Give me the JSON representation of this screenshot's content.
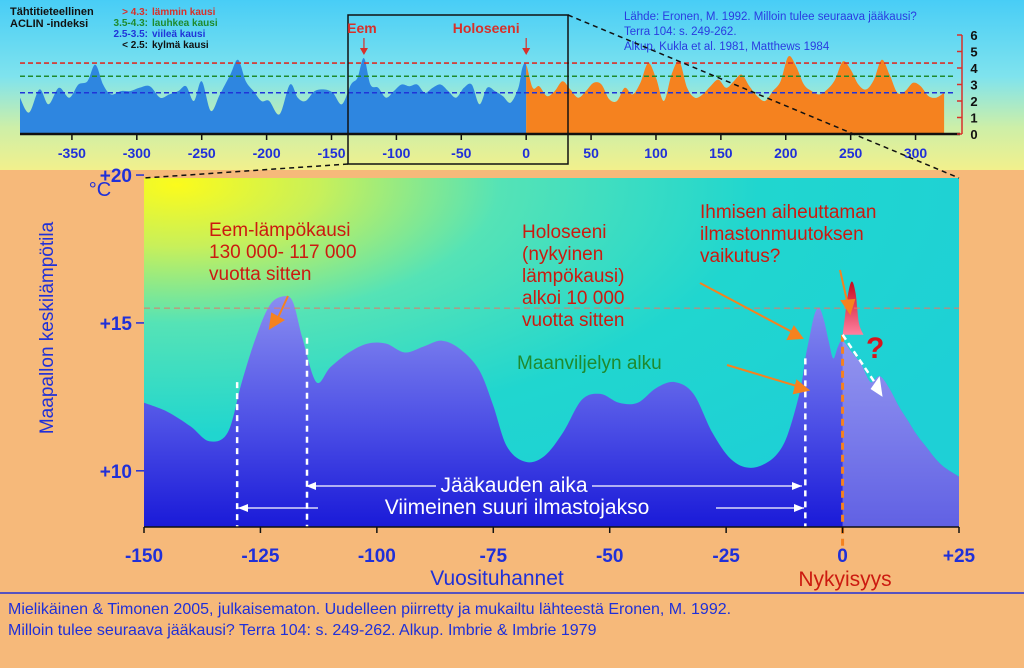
{
  "top_panel": {
    "legend": {
      "title": "Tähtitieteellinen",
      "subtitle": "ACLIN -indeksi",
      "items": [
        {
          "range": "> 4.3:",
          "label": "lämmin kausi",
          "color": "#d8302a"
        },
        {
          "range": "3.5-4.3:",
          "label": "lauhkea kausi",
          "color": "#1f8a2e"
        },
        {
          "range": "2.5-3.5:",
          "label": "viileä kausi",
          "color": "#2034d8"
        },
        {
          "range": "< 2.5:",
          "label": "kylmä kausi",
          "color": "#111111"
        }
      ]
    },
    "source_lines": [
      "Lähde:  Eronen, M. 1992. Milloin tulee seuraava jääkausi?",
      "Terra 104: s. 249-262.",
      "Alkup. Kukla et al. 1981, Matthews 1984"
    ],
    "markers": [
      {
        "label": "Eem",
        "x": -125
      },
      {
        "label": "Holoseeni",
        "x": 0
      }
    ]
  },
  "main_panel": {
    "annotations": {
      "eem": [
        "Eem-lämpökausi",
        "130 000- 117 000",
        "vuotta sitten"
      ],
      "holocene": [
        "Holoseeni",
        "(nykyinen",
        "lämpökausi)",
        "alkoi 10 000",
        "vuotta sitten"
      ],
      "human": [
        "Ihmisen aiheuttaman",
        "ilmastonmuutoksen",
        "vaikutus?"
      ],
      "agriculture": "Maanviljelyn alku",
      "question_mark": "?",
      "glacial": "Jääkauden aika",
      "last_cycle": "Viimeinen suuri ilmastojakso",
      "now": "Nykyisyys"
    }
  },
  "footer": {
    "lines": [
      "Mielikäinen & Timonen 2005, julkaisematon. Uudelleen piirretty ja mukailtu lähteestä Eronen, M. 1992.",
      "Milloin tulee  seuraava jääkausi? Terra 104: s. 249-262. Alkup. Imbrie & Imbrie 1979"
    ]
  },
  "chart_data": [
    {
      "type": "area",
      "xlim": [
        -390,
        325
      ],
      "ylim": [
        0,
        6
      ],
      "thresholds": [
        {
          "value": 4.3,
          "color": "#d8302a"
        },
        {
          "value": 3.5,
          "color": "#1f8a2e"
        },
        {
          "value": 2.5,
          "color": "#2034d8"
        }
      ],
      "x_ticks": [
        -350,
        -300,
        -250,
        -200,
        -150,
        -100,
        -50,
        0,
        50,
        100,
        150,
        200,
        250,
        300
      ],
      "x_tick_labels": [
        "-350",
        "-300",
        "-250",
        "-200",
        "-150",
        "-100",
        "-50",
        "0",
        "50",
        "100",
        "150",
        "200",
        "250",
        "300"
      ],
      "y_ticks": [
        0,
        1,
        2,
        3,
        4,
        5,
        6
      ],
      "past_color": "#2e86e0",
      "future_color": "#f5821f",
      "series": [
        {
          "x": [
            -390,
            -383,
            -375,
            -368,
            -360,
            -352,
            -345,
            -338,
            -332,
            -326,
            -320,
            -312,
            -305,
            -298,
            -290,
            -282,
            -275,
            -268,
            -262,
            -256,
            -250,
            -243,
            -236,
            -228,
            -222,
            -216,
            -210,
            -204,
            -198,
            -190,
            -182,
            -176,
            -170,
            -163,
            -156,
            -149,
            -142,
            -135,
            -130,
            -125,
            -120,
            -114,
            -108,
            -102,
            -96,
            -90,
            -84,
            -78,
            -72,
            -66,
            -60,
            -54,
            -48,
            -42,
            -36,
            -30,
            -24,
            -18,
            -12,
            -6,
            -3,
            0,
            5,
            10,
            16,
            22,
            28,
            34,
            40,
            46,
            52,
            58,
            64,
            70,
            76,
            82,
            88,
            94,
            100,
            106,
            112,
            118,
            124,
            130,
            136,
            142,
            148,
            154,
            160,
            166,
            172,
            178,
            184,
            190,
            196,
            202,
            208,
            214,
            220,
            226,
            232,
            238,
            244,
            250,
            256,
            262,
            268,
            274,
            280,
            286,
            292,
            298,
            304,
            310,
            316,
            322
          ],
          "y": [
            2.2,
            1.3,
            2.7,
            1.8,
            2.8,
            2.2,
            3.0,
            3.2,
            4.2,
            3.0,
            2.4,
            2.6,
            2.6,
            2.8,
            2.9,
            2.2,
            2.4,
            2.6,
            2.9,
            2.0,
            3.2,
            1.4,
            2.4,
            3.6,
            4.5,
            3.2,
            2.6,
            2.0,
            2.0,
            1.2,
            3.0,
            2.2,
            2.0,
            2.6,
            2.7,
            2.5,
            1.8,
            3.0,
            3.4,
            4.6,
            3.0,
            2.8,
            2.2,
            2.6,
            3.0,
            2.9,
            3.0,
            2.5,
            2.8,
            3.0,
            2.6,
            2.2,
            2.8,
            3.0,
            1.8,
            2.8,
            2.6,
            2.3,
            1.9,
            2.8,
            4.0,
            4.2,
            2.8,
            2.9,
            2.3,
            2.6,
            3.2,
            2.7,
            2.2,
            2.6,
            3.1,
            3.0,
            2.1,
            2.0,
            2.8,
            2.4,
            3.1,
            4.3,
            3.4,
            2.0,
            3.6,
            4.4,
            2.8,
            2.2,
            2.4,
            2.9,
            3.3,
            2.8,
            3.2,
            3.6,
            2.9,
            2.3,
            2.0,
            2.6,
            3.2,
            4.7,
            4.1,
            3.0,
            2.6,
            2.4,
            2.7,
            3.3,
            4.4,
            3.9,
            3.0,
            2.7,
            3.3,
            4.5,
            3.6,
            2.5,
            2.6,
            3.1,
            2.9,
            2.3,
            2.2,
            2.5
          ]
        }
      ]
    },
    {
      "type": "area",
      "xlabel": "Vuosituhannet",
      "ylabel": "Maapallon keskilämpötila",
      "y_unit": "°C",
      "xlim": [
        -150,
        25
      ],
      "ylim": [
        8.1,
        19.9
      ],
      "x_ticks": [
        -150,
        -125,
        -100,
        -75,
        -50,
        -25,
        0,
        25
      ],
      "x_tick_labels": [
        "-150",
        "-125",
        "-100",
        "-75",
        "-50",
        "-25",
        "0",
        "+25"
      ],
      "y_ticks": [
        10,
        15,
        20
      ],
      "y_tick_labels": [
        "+10",
        "+15",
        "+20"
      ],
      "reference_line": 15.5,
      "vertical_markers": [
        -130,
        -115,
        -8
      ],
      "now_marker": 0,
      "series": [
        {
          "name": "past",
          "x": [
            -150,
            -145,
            -140,
            -136,
            -132,
            -129,
            -126,
            -123,
            -120,
            -118,
            -116,
            -113,
            -110,
            -106,
            -102,
            -98,
            -94,
            -90,
            -86,
            -82,
            -78,
            -75,
            -72,
            -68,
            -64,
            -60,
            -56,
            -52,
            -48,
            -44,
            -40,
            -36,
            -32,
            -28,
            -24,
            -20,
            -16,
            -13,
            -11,
            -9,
            -8,
            -7,
            -6,
            -5,
            -4,
            -3,
            -2,
            -1,
            0,
            2,
            4,
            6,
            8,
            10,
            12,
            14,
            16,
            18,
            20,
            22,
            25
          ],
          "y": [
            12.3,
            12.0,
            11.5,
            11.0,
            11.3,
            13.0,
            14.5,
            15.6,
            15.9,
            15.7,
            14.5,
            13.0,
            13.5,
            14.0,
            14.3,
            14.3,
            14.0,
            14.2,
            14.4,
            14.1,
            13.4,
            12.2,
            10.8,
            10.3,
            10.5,
            11.3,
            12.4,
            12.6,
            12.3,
            12.3,
            12.8,
            13.0,
            12.6,
            11.3,
            10.4,
            10.1,
            10.3,
            10.8,
            11.6,
            12.8,
            13.8,
            14.6,
            15.3,
            15.5,
            15.1,
            14.4,
            13.8,
            14.2,
            14.4,
            14.0,
            13.6,
            13.0,
            13.2,
            12.8,
            12.2,
            11.7,
            11.2,
            10.8,
            10.4,
            10.1,
            9.8
          ]
        },
        {
          "name": "human",
          "x": [
            0,
            0.5,
            1.2,
            2.0,
            2.8,
            3.5,
            4.5
          ],
          "y": [
            14.6,
            15.2,
            16.0,
            16.4,
            16.0,
            15.0,
            14.6
          ]
        }
      ]
    }
  ]
}
